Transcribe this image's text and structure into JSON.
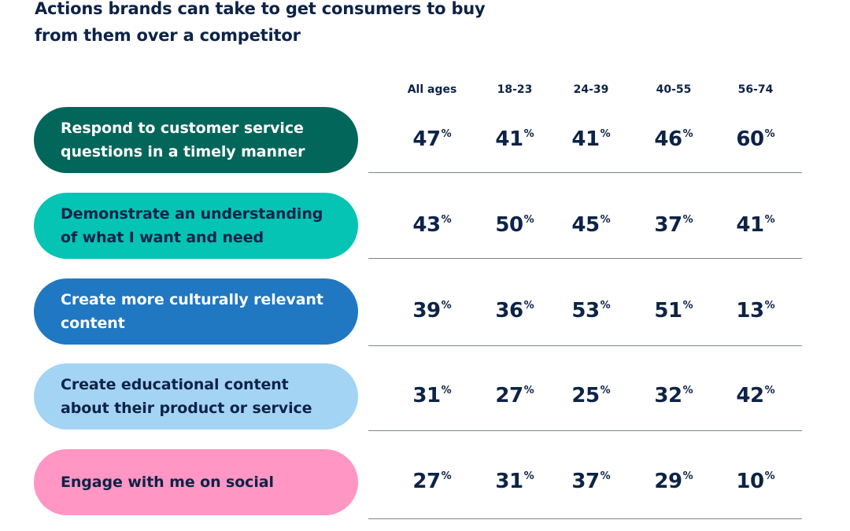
{
  "title": "Actions brands can take to get consumers to buy from them over a competitor",
  "chart_data": {
    "type": "table",
    "columns": [
      "All ages",
      "18-23",
      "24-39",
      "40-55",
      "56-74"
    ],
    "unit_symbol": "%",
    "rows": [
      {
        "label": "Respond to customer service questions in a timely manner",
        "values": [
          "47",
          "41",
          "41",
          "46",
          "60"
        ],
        "color": "#03665a",
        "text_color": "#ffffff"
      },
      {
        "label": "Demonstrate an understanding of what I want and need",
        "values": [
          "43",
          "50",
          "45",
          "37",
          "41"
        ],
        "color": "#05c4b4",
        "text_color": "#0d2347"
      },
      {
        "label": "Create more culturally relevant content",
        "values": [
          "39",
          "36",
          "53",
          "51",
          "13"
        ],
        "color": "#1f78c1",
        "text_color": "#ffffff"
      },
      {
        "label": "Create educational content about their product or service",
        "values": [
          "31",
          "27",
          "25",
          "32",
          "42"
        ],
        "color": "#a4d4f4",
        "text_color": "#0d2347"
      },
      {
        "label": "Engage with me on social",
        "values": [
          "27",
          "31",
          "37",
          "29",
          "10"
        ],
        "color": "#ff96c3",
        "text_color": "#0d2347"
      }
    ]
  }
}
